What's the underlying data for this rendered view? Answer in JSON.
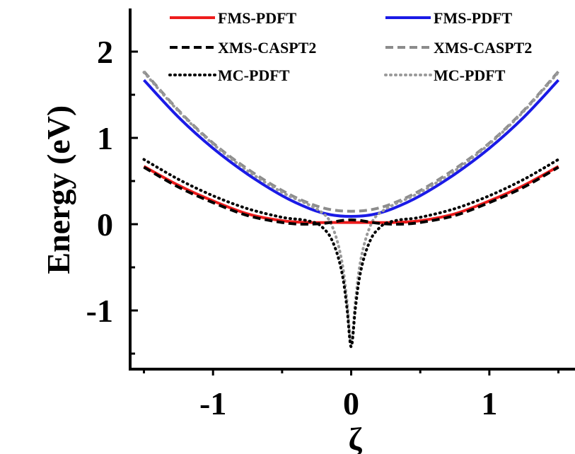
{
  "chart_data": {
    "type": "line",
    "xlabel": "ζ",
    "ylabel": "Energy (eV)",
    "xlim": [
      -1.6,
      1.62
    ],
    "ylim": [
      -1.68,
      2.5
    ],
    "x_ticks": [
      -1,
      0,
      1
    ],
    "x_tick_labels": [
      "-1",
      "0",
      "1"
    ],
    "y_ticks": [
      -1,
      0,
      1,
      2
    ],
    "y_tick_labels": [
      "-1",
      "0",
      "1",
      "2"
    ],
    "legend_placement": "top",
    "grid": false,
    "series": [
      {
        "name": "FMS-PDFT",
        "state": "ground",
        "color": "#ee1c1c",
        "style": "solid",
        "legend_col": 0,
        "legend_row": 0,
        "x": [
          -1.5,
          -1.25,
          -1.0,
          -0.75,
          -0.5,
          -0.3,
          -0.15,
          0.0,
          0.15,
          0.3,
          0.5,
          0.75,
          1.0,
          1.25,
          1.5
        ],
        "y": [
          0.67,
          0.45,
          0.27,
          0.12,
          0.04,
          0.02,
          0.02,
          0.02,
          0.02,
          0.02,
          0.04,
          0.12,
          0.27,
          0.45,
          0.67
        ]
      },
      {
        "name": "FMS-PDFT",
        "state": "excited",
        "color": "#1a1ae6",
        "style": "solid",
        "legend_col": 1,
        "legend_row": 0,
        "x": [
          -1.5,
          -1.25,
          -1.0,
          -0.75,
          -0.5,
          -0.3,
          -0.15,
          0.0,
          0.15,
          0.3,
          0.5,
          0.75,
          1.0,
          1.25,
          1.5
        ],
        "y": [
          1.67,
          1.24,
          0.88,
          0.58,
          0.33,
          0.18,
          0.11,
          0.09,
          0.11,
          0.18,
          0.33,
          0.58,
          0.88,
          1.24,
          1.67
        ]
      },
      {
        "name": "XMS-CASPT2",
        "state": "ground",
        "color": "#000000",
        "style": "dashed",
        "legend_col": 0,
        "legend_row": 1,
        "x": [
          -1.5,
          -1.25,
          -1.0,
          -0.75,
          -0.5,
          -0.35,
          -0.2,
          0.0,
          0.2,
          0.35,
          0.5,
          0.75,
          1.0,
          1.25,
          1.5
        ],
        "y": [
          0.66,
          0.43,
          0.25,
          0.1,
          0.02,
          0.0,
          0.01,
          0.05,
          0.01,
          0.0,
          0.02,
          0.1,
          0.25,
          0.43,
          0.66
        ]
      },
      {
        "name": "XMS-CASPT2",
        "state": "excited",
        "color": "#8c8c8c",
        "style": "dashed",
        "legend_col": 1,
        "legend_row": 1,
        "x": [
          -1.5,
          -1.25,
          -1.0,
          -0.75,
          -0.5,
          -0.3,
          -0.15,
          0.0,
          0.15,
          0.3,
          0.5,
          0.75,
          1.0,
          1.25,
          1.5
        ],
        "y": [
          1.77,
          1.32,
          0.94,
          0.64,
          0.39,
          0.24,
          0.17,
          0.15,
          0.17,
          0.24,
          0.39,
          0.64,
          0.94,
          1.32,
          1.77
        ]
      },
      {
        "name": "MC-PDFT",
        "state": "ground",
        "color": "#000000",
        "style": "dotted",
        "legend_col": 0,
        "legend_row": 2,
        "x": [
          -1.5,
          -1.25,
          -1.0,
          -0.75,
          -0.5,
          -0.35,
          -0.25,
          -0.2,
          -0.15,
          -0.1,
          -0.06,
          -0.03,
          0.0,
          0.03,
          0.06,
          0.1,
          0.15,
          0.2,
          0.25,
          0.35,
          0.5,
          0.75,
          1.0,
          1.25,
          1.5
        ],
        "y": [
          0.75,
          0.52,
          0.33,
          0.18,
          0.08,
          0.05,
          0.01,
          -0.05,
          -0.15,
          -0.35,
          -0.62,
          -0.98,
          -1.42,
          -0.98,
          -0.62,
          -0.35,
          -0.15,
          -0.05,
          0.01,
          0.05,
          0.08,
          0.18,
          0.33,
          0.52,
          0.75
        ]
      },
      {
        "name": "MC-PDFT",
        "state": "excited",
        "color": "#9a9a9a",
        "style": "dotted",
        "legend_col": 1,
        "legend_row": 2,
        "x": [
          -1.5,
          -1.25,
          -1.0,
          -0.75,
          -0.5,
          -0.3,
          -0.2,
          -0.15,
          -0.1,
          -0.06,
          -0.03,
          0.0,
          0.03,
          0.06,
          0.1,
          0.15,
          0.2,
          0.3,
          0.5,
          0.75,
          1.0,
          1.25,
          1.5
        ],
        "y": [
          1.76,
          1.31,
          0.93,
          0.62,
          0.37,
          0.22,
          0.12,
          0.02,
          -0.2,
          -0.5,
          -0.9,
          -1.38,
          -0.9,
          -0.5,
          -0.2,
          0.02,
          0.12,
          0.22,
          0.37,
          0.62,
          0.93,
          1.31,
          1.76
        ]
      }
    ]
  }
}
